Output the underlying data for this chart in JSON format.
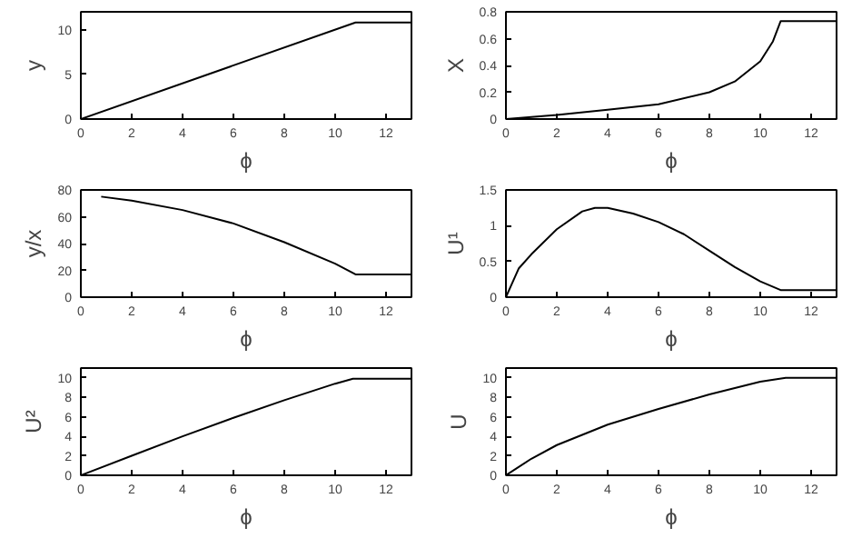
{
  "chart_data": [
    {
      "type": "line",
      "xlabel": "ϕ",
      "ylabel": "y",
      "x": [
        0,
        10.8,
        13
      ],
      "values": [
        0,
        10.8,
        10.8
      ],
      "color": "#000000",
      "xlim": [
        0,
        13
      ],
      "ylim": [
        0,
        12
      ],
      "xticks": [
        0,
        2,
        4,
        6,
        8,
        10,
        12
      ],
      "yticks": [
        0,
        5,
        10
      ],
      "grid": false
    },
    {
      "type": "line",
      "xlabel": "ϕ",
      "ylabel": "X",
      "x": [
        0,
        2,
        4,
        6,
        8,
        9,
        10,
        10.5,
        10.8,
        13
      ],
      "values": [
        0,
        0.03,
        0.07,
        0.11,
        0.2,
        0.28,
        0.43,
        0.58,
        0.73,
        0.73
      ],
      "color": "#000000",
      "xlim": [
        0,
        13
      ],
      "ylim": [
        0,
        0.8
      ],
      "xticks": [
        0,
        2,
        4,
        6,
        8,
        10,
        12
      ],
      "yticks": [
        0,
        0.2,
        0.4,
        0.6,
        0.8
      ],
      "grid": false
    },
    {
      "type": "line",
      "xlabel": "ϕ",
      "ylabel": "y/x",
      "x": [
        0.8,
        2,
        4,
        6,
        8,
        10,
        10.8,
        13
      ],
      "values": [
        75,
        72,
        65,
        55,
        41,
        25,
        17,
        17
      ],
      "color": "#000000",
      "xlim": [
        0,
        13
      ],
      "ylim": [
        0,
        80
      ],
      "xticks": [
        0,
        2,
        4,
        6,
        8,
        10,
        12
      ],
      "yticks": [
        0,
        20,
        40,
        60,
        80
      ],
      "grid": false
    },
    {
      "type": "line",
      "xlabel": "ϕ",
      "ylabel": "U¹",
      "x": [
        0,
        0.5,
        1,
        2,
        3,
        3.5,
        4,
        5,
        6,
        7,
        8,
        9,
        10,
        10.8,
        13
      ],
      "values": [
        0,
        0.4,
        0.6,
        0.95,
        1.2,
        1.25,
        1.25,
        1.17,
        1.05,
        0.88,
        0.65,
        0.42,
        0.22,
        0.1,
        0.1
      ],
      "color": "#000000",
      "xlim": [
        0,
        13
      ],
      "ylim": [
        0,
        1.5
      ],
      "xticks": [
        0,
        2,
        4,
        6,
        8,
        10,
        12
      ],
      "yticks": [
        0,
        0.5,
        1,
        1.5
      ],
      "grid": false
    },
    {
      "type": "line",
      "xlabel": "ϕ",
      "ylabel": "U²",
      "x": [
        0,
        2,
        4,
        6,
        8,
        10,
        10.7,
        13
      ],
      "values": [
        0,
        2,
        4,
        5.9,
        7.7,
        9.4,
        9.9,
        9.9
      ],
      "color": "#000000",
      "xlim": [
        0,
        13
      ],
      "ylim": [
        0,
        11
      ],
      "xticks": [
        0,
        2,
        4,
        6,
        8,
        10,
        12
      ],
      "yticks": [
        0,
        2,
        4,
        6,
        8,
        10
      ],
      "grid": false
    },
    {
      "type": "line",
      "xlabel": "ϕ",
      "ylabel": "U",
      "x": [
        0,
        1,
        2,
        4,
        6,
        8,
        10,
        11,
        13
      ],
      "values": [
        0,
        1.7,
        3.1,
        5.2,
        6.8,
        8.3,
        9.6,
        10,
        10
      ],
      "color": "#000000",
      "xlim": [
        0,
        13
      ],
      "ylim": [
        0,
        11
      ],
      "xticks": [
        0,
        2,
        4,
        6,
        8,
        10,
        12
      ],
      "yticks": [
        0,
        2,
        4,
        6,
        8,
        10
      ],
      "grid": false
    }
  ]
}
